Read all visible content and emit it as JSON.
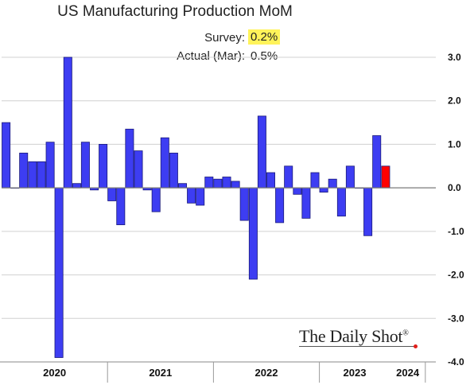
{
  "title": "US Manufacturing Production MoM",
  "survey": {
    "label": "Survey:",
    "value": "0.2%"
  },
  "actual": {
    "label": "Actual (Mar):",
    "value": "0.5%"
  },
  "logo": {
    "text": "The Daily Shot",
    "mark": "®"
  },
  "colors": {
    "bar": "#3d3df2",
    "highlight": "#ff0000",
    "highlight_fill": "#fff35a"
  },
  "chart_data": {
    "type": "bar",
    "title": "US Manufacturing Production MoM",
    "xlabel": "",
    "ylabel": "",
    "ylim": [
      -4.0,
      3.0
    ],
    "y_ticks": [
      "3.0",
      "2.0",
      "1.0",
      "0.0",
      "-1.0",
      "-2.0",
      "-3.0",
      "-4.0"
    ],
    "grid": "horizontal",
    "start_month": "2020-01",
    "years": [
      "2020",
      "2021",
      "2022",
      "2023",
      "2024"
    ],
    "values": [
      1.5,
      0.0,
      0.8,
      0.6,
      0.6,
      1.05,
      -3.9,
      3.0,
      0.1,
      1.05,
      -0.05,
      1.0,
      -0.3,
      -0.85,
      1.35,
      0.85,
      -0.05,
      -0.55,
      1.15,
      0.8,
      0.1,
      -0.35,
      -0.4,
      0.25,
      0.2,
      0.25,
      0.15,
      -0.75,
      -2.1,
      1.65,
      0.35,
      -0.8,
      0.5,
      -0.15,
      -0.7,
      0.35,
      -0.1,
      0.2,
      -0.65,
      0.5,
      0.0,
      -1.1,
      1.2,
      0.5
    ],
    "highlight_index": 43
  }
}
